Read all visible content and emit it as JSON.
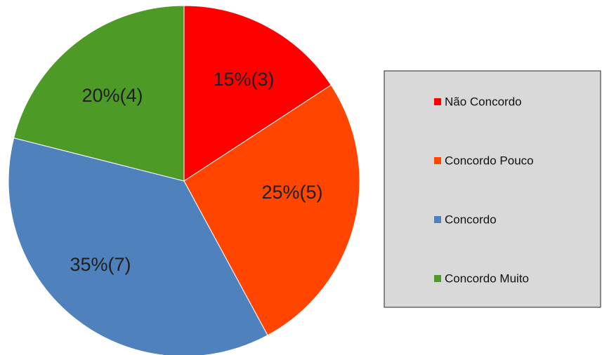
{
  "chart_data": {
    "type": "pie",
    "categories": [
      "Não Concordo",
      "Concordo Pouco",
      "Concordo",
      "Concordo Muito"
    ],
    "values": [
      3,
      5,
      7,
      4
    ],
    "percentages": [
      15,
      25,
      35,
      20
    ],
    "data_labels": [
      "15%(3)",
      "25%(5)",
      "35%(7)",
      "20%(4)"
    ],
    "colors": [
      "#ff0000",
      "#ff4500",
      "#4f81bd",
      "#4e9a26"
    ],
    "legend": {
      "placement": "right",
      "entries": [
        "Não Concordo",
        "Concordo Pouco",
        "Concordo",
        "Concordo Muito"
      ]
    }
  }
}
